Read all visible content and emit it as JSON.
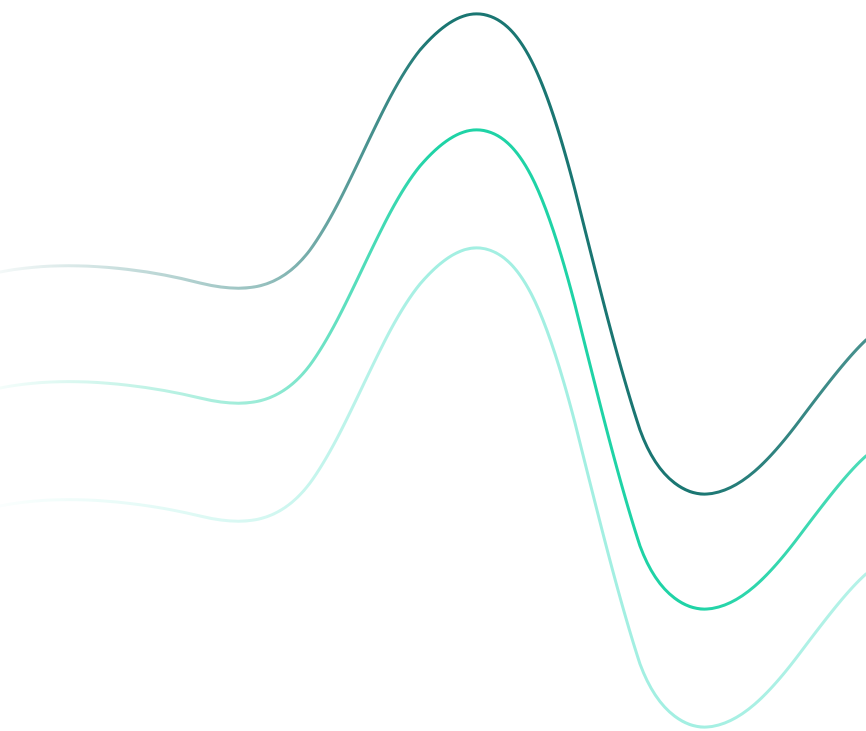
{
  "artwork": {
    "description_kind": "decorative-wave-graphic",
    "background_color": "#ffffff",
    "waves": [
      {
        "id": "wave-dark",
        "color": "#1a7672"
      },
      {
        "id": "wave-medium",
        "color": "#1fd3a6"
      },
      {
        "id": "wave-light",
        "color": "#a3efe2"
      }
    ]
  }
}
